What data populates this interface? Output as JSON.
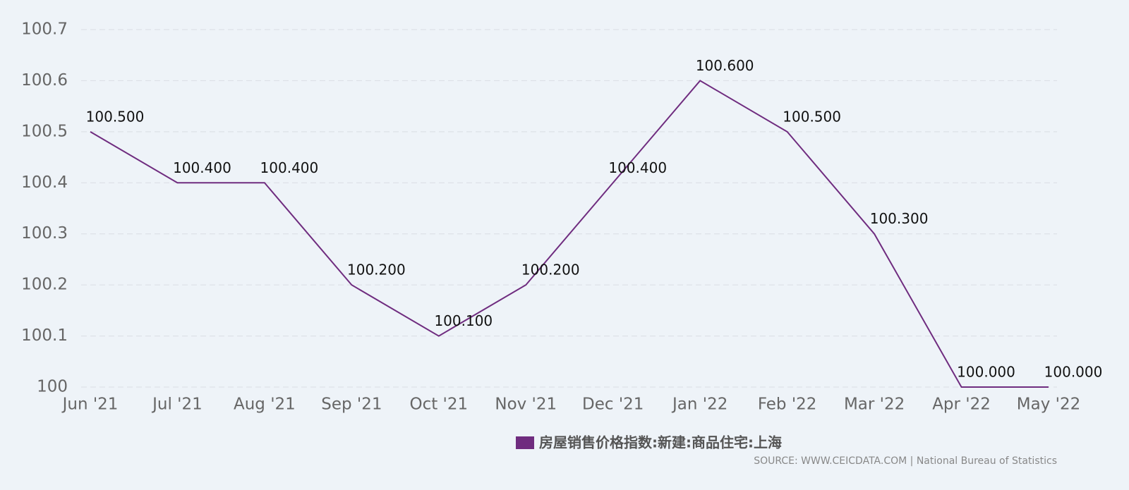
{
  "chart_data": {
    "type": "line",
    "categories": [
      "Jun '21",
      "Jul '21",
      "Aug '21",
      "Sep '21",
      "Oct '21",
      "Nov '21",
      "Dec '21",
      "Jan '22",
      "Feb '22",
      "Mar '22",
      "Apr '22",
      "May '22"
    ],
    "series": [
      {
        "name": "房屋销售价格指数:新建:商品住宅:上海",
        "color": "#6f2c7f",
        "values": [
          100.5,
          100.4,
          100.4,
          100.2,
          100.1,
          100.2,
          100.4,
          100.6,
          100.5,
          100.3,
          100.0,
          100.0
        ],
        "value_labels": [
          "100.500",
          "100.400",
          "100.400",
          "100.200",
          "100.100",
          "100.200",
          "100.400",
          "100.600",
          "100.500",
          "100.300",
          "100.000",
          "100.000"
        ]
      }
    ],
    "ylim": [
      100,
      100.7
    ],
    "yticks": [
      100,
      100.1,
      100.2,
      100.3,
      100.4,
      100.5,
      100.6,
      100.7
    ],
    "grid": true,
    "legend": "bottom",
    "source": "SOURCE: WWW.CEICDATA.COM | National Bureau of Statistics"
  }
}
